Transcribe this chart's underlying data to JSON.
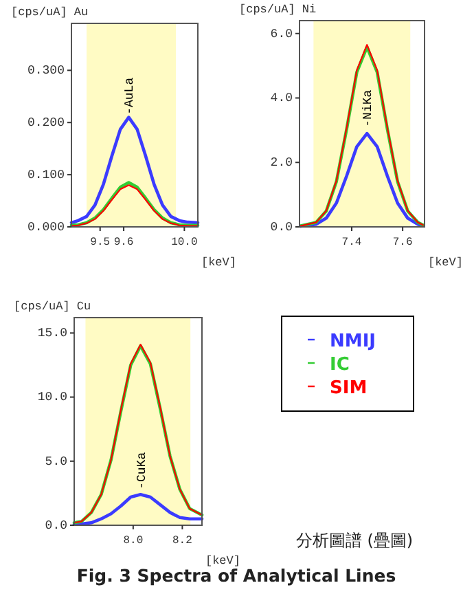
{
  "chart_data": [
    {
      "type": "line",
      "ylabel": "[cps/uA] Au",
      "xlabel": "[keV]",
      "xlim": [
        9.33,
        10.08
      ],
      "ylim": [
        0,
        0.39
      ],
      "xticks": [
        9.5,
        {
          "value": 9.64,
          "label": "9.6"
        },
        {
          "value": 10.0,
          "label": "10.0"
        }
      ],
      "yticks": [
        {
          "value": 0,
          "label": "0.000"
        },
        {
          "value": 0.1,
          "label": "0.100"
        },
        {
          "value": 0.2,
          "label": "0.200"
        },
        {
          "value": 0.3,
          "label": "0.300"
        }
      ],
      "bands": [
        {
          "axis": "x",
          "from": 9.42,
          "to": 9.95,
          "color": "#fffbc4"
        }
      ],
      "annotations": [
        {
          "text": "-AuLa",
          "x": 9.67,
          "y": 0.215
        }
      ],
      "x": [
        9.33,
        9.37,
        9.42,
        9.47,
        9.52,
        9.57,
        9.62,
        9.67,
        9.72,
        9.77,
        9.82,
        9.87,
        9.92,
        9.97,
        10.02,
        10.08
      ],
      "series": [
        {
          "color": "#3b3bff",
          "values": [
            0.008,
            0.012,
            0.02,
            0.042,
            0.082,
            0.136,
            0.187,
            0.21,
            0.187,
            0.136,
            0.082,
            0.042,
            0.02,
            0.012,
            0.009,
            0.008
          ]
        },
        {
          "color": "#33cc33",
          "values": [
            0.003,
            0.004,
            0.008,
            0.017,
            0.033,
            0.055,
            0.076,
            0.085,
            0.076,
            0.055,
            0.033,
            0.017,
            0.008,
            0.004,
            0.003,
            0.003
          ]
        },
        {
          "color": "#ff0000",
          "values": [
            0.002,
            0.003,
            0.007,
            0.015,
            0.031,
            0.052,
            0.072,
            0.08,
            0.072,
            0.052,
            0.031,
            0.015,
            0.007,
            0.003,
            0.002,
            0.002
          ]
        }
      ]
    },
    {
      "type": "line",
      "ylabel": "[cps/uA] Ni",
      "xlabel": "[keV]",
      "xlim": [
        7.195,
        7.686
      ],
      "ylim": [
        0,
        6.4
      ],
      "xticks": [
        7.4,
        7.6
      ],
      "yticks": [
        {
          "value": 0,
          "label": "0.0"
        },
        {
          "value": 2,
          "label": "2.0"
        },
        {
          "value": 4,
          "label": "4.0"
        },
        {
          "value": 6,
          "label": "6.0"
        }
      ],
      "bands": [
        {
          "axis": "x",
          "from": 7.25,
          "to": 7.63,
          "color": "#fffbc4"
        }
      ],
      "annotations": [
        {
          "text": "-NiKa",
          "x": 7.46,
          "y": 3.1
        }
      ],
      "x": [
        7.2,
        7.26,
        7.3,
        7.34,
        7.38,
        7.42,
        7.46,
        7.5,
        7.54,
        7.58,
        7.62,
        7.66,
        7.68
      ],
      "series": [
        {
          "color": "#3b3bff",
          "values": [
            0.02,
            0.08,
            0.27,
            0.74,
            1.58,
            2.49,
            2.9,
            2.49,
            1.58,
            0.74,
            0.27,
            0.08,
            0.04
          ]
        },
        {
          "color": "#33cc33",
          "values": [
            0.03,
            0.14,
            0.49,
            1.41,
            3.03,
            4.8,
            5.58,
            4.8,
            3.03,
            1.41,
            0.49,
            0.14,
            0.06
          ]
        },
        {
          "color": "#ff0000",
          "values": [
            0.03,
            0.14,
            0.5,
            1.43,
            3.07,
            4.86,
            5.65,
            4.86,
            3.07,
            1.43,
            0.5,
            0.14,
            0.06
          ]
        }
      ]
    },
    {
      "type": "line",
      "ylabel": "[cps/uA] Cu",
      "xlabel": "[keV]",
      "xlim": [
        7.76,
        8.28
      ],
      "ylim": [
        0,
        16.2
      ],
      "xticks": [
        {
          "value": 8.0,
          "label": "8.0"
        },
        8.2
      ],
      "yticks": [
        {
          "value": 0,
          "label": "0.0"
        },
        {
          "value": 5,
          "label": "5.0"
        },
        {
          "value": 10,
          "label": "10.0"
        },
        {
          "value": 15,
          "label": "15.0"
        }
      ],
      "bands": [
        {
          "axis": "x",
          "from": 7.806,
          "to": 8.233,
          "color": "#fffbc4"
        }
      ],
      "legend": "right",
      "annotations": [
        {
          "text": "-CuKa",
          "x": 8.03,
          "y": 2.8
        },
        "分析圖譜 (疊圖)",
        "Fig. 3 Spectra of Analytical Lines"
      ],
      "x": [
        7.76,
        7.79,
        7.83,
        7.87,
        7.91,
        7.95,
        7.99,
        8.03,
        8.07,
        8.11,
        8.15,
        8.19,
        8.23,
        8.27,
        8.28
      ],
      "series": [
        {
          "name": "NMIJ",
          "color": "#3b3bff",
          "values": [
            0.1,
            0.1,
            0.2,
            0.5,
            0.9,
            1.5,
            2.2,
            2.4,
            2.2,
            1.6,
            1.0,
            0.6,
            0.5,
            0.5,
            0.5
          ]
        },
        {
          "name": "IC",
          "color": "#33cc33",
          "values": [
            0.2,
            0.3,
            1.0,
            2.4,
            5.1,
            8.9,
            12.5,
            14.0,
            12.6,
            9.1,
            5.4,
            2.8,
            1.3,
            0.9,
            0.8
          ]
        },
        {
          "name": "SIM",
          "color": "#ff0000",
          "values": [
            0.2,
            0.3,
            1.0,
            2.4,
            5.1,
            9.0,
            12.6,
            14.1,
            12.7,
            9.2,
            5.4,
            2.8,
            1.3,
            0.9,
            0.8
          ]
        }
      ]
    }
  ]
}
